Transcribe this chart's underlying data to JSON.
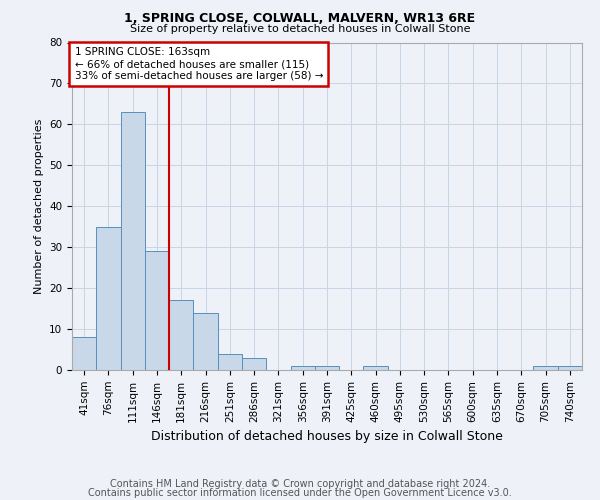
{
  "title": "1, SPRING CLOSE, COLWALL, MALVERN, WR13 6RE",
  "subtitle": "Size of property relative to detached houses in Colwall Stone",
  "xlabel": "Distribution of detached houses by size in Colwall Stone",
  "ylabel": "Number of detached properties",
  "footer_line1": "Contains HM Land Registry data © Crown copyright and database right 2024.",
  "footer_line2": "Contains public sector information licensed under the Open Government Licence v3.0.",
  "annotation_line1": "1 SPRING CLOSE: 163sqm",
  "annotation_line2": "← 66% of detached houses are smaller (115)",
  "annotation_line3": "33% of semi-detached houses are larger (58) →",
  "categories": [
    "41sqm",
    "76sqm",
    "111sqm",
    "146sqm",
    "181sqm",
    "216sqm",
    "251sqm",
    "286sqm",
    "321sqm",
    "356sqm",
    "391sqm",
    "425sqm",
    "460sqm",
    "495sqm",
    "530sqm",
    "565sqm",
    "600sqm",
    "635sqm",
    "670sqm",
    "705sqm",
    "740sqm"
  ],
  "values": [
    8,
    35,
    63,
    29,
    17,
    14,
    4,
    3,
    0,
    1,
    1,
    0,
    1,
    0,
    0,
    0,
    0,
    0,
    0,
    1,
    1
  ],
  "bar_color": "#c8d8e8",
  "bar_edge_color": "#5590bb",
  "red_line_x": 3.5,
  "ylim": [
    0,
    80
  ],
  "yticks": [
    0,
    10,
    20,
    30,
    40,
    50,
    60,
    70,
    80
  ],
  "annotation_box_color": "#ffffff",
  "annotation_box_edge_color": "#cc0000",
  "red_line_color": "#cc0000",
  "grid_color": "#c8d4e4",
  "background_color": "#eef2f8",
  "title_fontsize": 9,
  "subtitle_fontsize": 8,
  "axis_fontsize": 8,
  "tick_fontsize": 7.5,
  "footer_fontsize": 7
}
